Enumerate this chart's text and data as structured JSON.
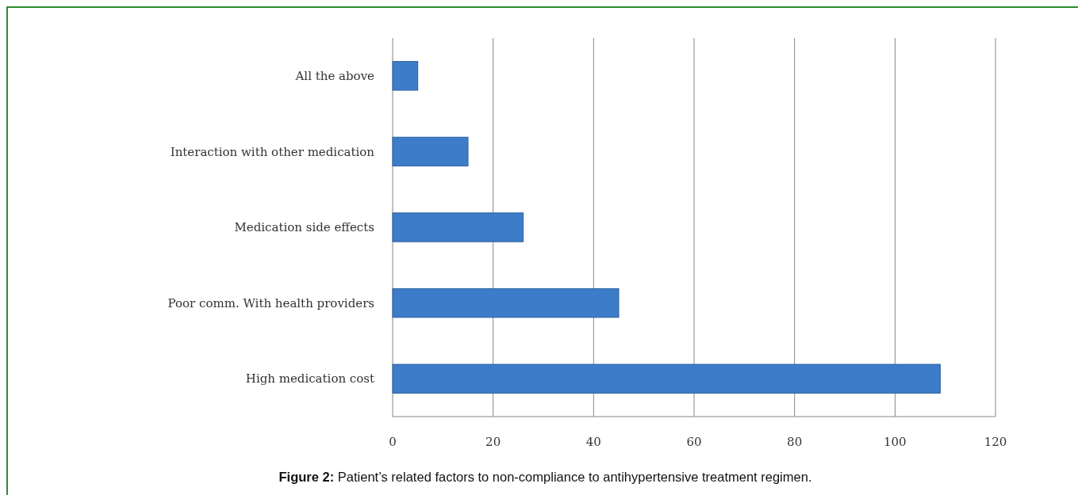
{
  "chart_data": {
    "type": "bar",
    "orientation": "horizontal",
    "title": "Figure 2: Patient’s related factors to non-compliance to antihypertensive treatment regimen.",
    "categories": [
      "All the above",
      "Interaction with other medication",
      "Medication side effects",
      "Poor comm. With health providers",
      "High medication cost"
    ],
    "values": [
      5,
      15,
      26,
      45,
      109
    ],
    "color": "#3d7cc9",
    "xlim": [
      0,
      120
    ],
    "xticks": [
      0,
      20,
      40,
      60,
      80,
      100,
      120
    ],
    "grid": "x"
  }
}
